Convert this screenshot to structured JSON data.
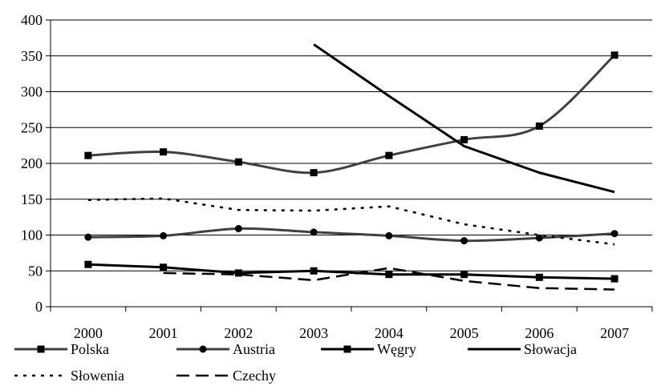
{
  "chart_data": {
    "type": "line",
    "title": "",
    "xlabel": "",
    "ylabel": "",
    "categories": [
      "2000",
      "2001",
      "2002",
      "2003",
      "2004",
      "2005",
      "2006",
      "2007"
    ],
    "ylim": [
      0,
      400
    ],
    "yticks": [
      0,
      50,
      100,
      150,
      200,
      250,
      300,
      350,
      400
    ],
    "grid": "horizontal",
    "legend_position": "bottom",
    "series": [
      {
        "name": "Polska",
        "values": [
          211,
          216,
          202,
          187,
          211,
          233,
          252,
          351
        ],
        "color": "#404040",
        "dash": "solid",
        "marker": "square",
        "smooth": true
      },
      {
        "name": "Austria",
        "values": [
          97,
          99,
          109,
          104,
          99,
          92,
          96,
          102
        ],
        "color": "#404040",
        "dash": "solid",
        "marker": "circle",
        "smooth": true
      },
      {
        "name": "Węgry",
        "values": [
          59,
          55,
          47,
          50,
          45,
          45,
          41,
          39
        ],
        "color": "#000000",
        "dash": "solid",
        "marker": "square",
        "smooth": false
      },
      {
        "name": "Słowacja",
        "values": [
          null,
          null,
          null,
          366,
          294,
          224,
          187,
          160
        ],
        "color": "#000000",
        "dash": "solid",
        "marker": "none",
        "smooth": false
      },
      {
        "name": "Słowenia",
        "values": [
          149,
          151,
          135,
          134,
          140,
          115,
          100,
          87
        ],
        "color": "#000000",
        "dash": "dot",
        "marker": "none",
        "smooth": false
      },
      {
        "name": "Czechy",
        "values": [
          null,
          47,
          45,
          37,
          54,
          36,
          26,
          24
        ],
        "color": "#000000",
        "dash": "dash",
        "marker": "none",
        "smooth": false
      }
    ]
  }
}
